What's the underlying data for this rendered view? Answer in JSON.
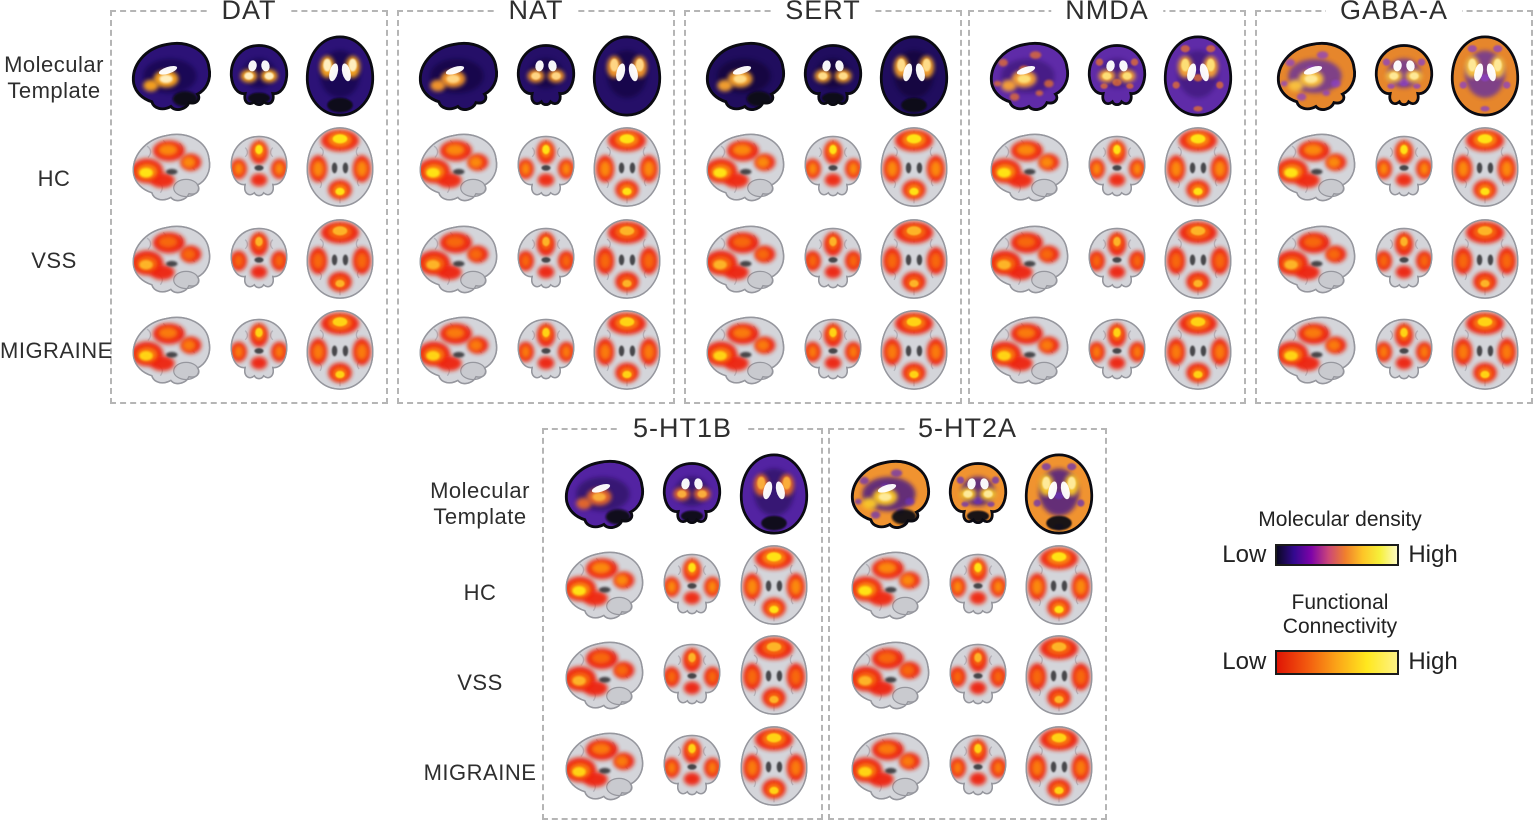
{
  "figure": {
    "row_labels": [
      "Molecular Template",
      "HC",
      "VSS",
      "MIGRAINE"
    ],
    "views": [
      "sagittal",
      "coronal",
      "axial"
    ],
    "top_panels": [
      {
        "label": "DAT",
        "scheme": "dat"
      },
      {
        "label": "NAT",
        "scheme": "nat"
      },
      {
        "label": "SERT",
        "scheme": "sert"
      },
      {
        "label": "NMDA",
        "scheme": "nmda"
      },
      {
        "label": "GABA-A",
        "scheme": "gabaa"
      }
    ],
    "bottom_panels": [
      {
        "label": "5-HT1B",
        "scheme": "ht1b"
      },
      {
        "label": "5-HT2A",
        "scheme": "ht2a"
      }
    ]
  },
  "legend": {
    "molecular": {
      "title": "Molecular density",
      "low": "Low",
      "high": "High",
      "gradient": [
        "#0b0724",
        "#33098f",
        "#7e03a8",
        "#cb4679",
        "#f0802c",
        "#fdc527",
        "#f6f03a",
        "#fdf9c0"
      ]
    },
    "functional": {
      "title": "Functional Connectivity",
      "low": "Low",
      "high": "High",
      "gradient": [
        "#e01505",
        "#f2590f",
        "#fba518",
        "#ffe81e",
        "#fdf285"
      ]
    }
  },
  "palettes": {
    "molecular_schemes": {
      "dat": {
        "base": "#2c1277",
        "shade": "#10053d",
        "shade_opacity": 0.55,
        "hot": "#ffa81f",
        "core": "#fff3c8",
        "speckle": null,
        "dark_cerebellum": true
      },
      "nat": {
        "base": "#250f68",
        "shade": "#0e0534",
        "shade_opacity": 0.55,
        "hot": "#fb9b2c",
        "core": "#ffd98a",
        "speckle": null,
        "dark_cerebellum": false
      },
      "sert": {
        "base": "#200d5e",
        "shade": "#0b0328",
        "shade_opacity": 0.5,
        "hot": "#fca62e",
        "core": "#ffe08f",
        "speckle": null,
        "dark_cerebellum": true
      },
      "nmda": {
        "base": "#5f2ba8",
        "shade": "#2a0f5e",
        "shade_opacity": 0.45,
        "hot": "#fca636",
        "core": "#fde27a",
        "speckle": "#e8722f",
        "dark_cerebellum": false
      },
      "gabaa": {
        "base": "#e6862c",
        "shade": "#5b2aa6",
        "shade_opacity": 0.75,
        "hot": "#fdc53a",
        "core": "#feea9b",
        "speckle": "#8a3fc6",
        "dark_cerebellum": false
      },
      "ht1b": {
        "base": "#5323a2",
        "shade": "#1f0847",
        "shade_opacity": 0.5,
        "hot": "#e86a2c",
        "core": "#fbb13c",
        "speckle": null,
        "dark_cerebellum": true
      },
      "ht2a": {
        "base": "#f09330",
        "shade": "#42198a",
        "shade_opacity": 0.8,
        "hot": "#fdca26",
        "core": "#feeca0",
        "speckle": "#6a30b5",
        "dark_cerebellum": true
      }
    },
    "functional_levels": {
      "HC": {
        "outer": "#f02708",
        "mid": "#fc9410",
        "core": "#ffe816"
      },
      "VSS": {
        "outer": "#ee2408",
        "mid": "#f8700e",
        "core": "#fdb92a"
      },
      "MIGRAINE": {
        "outer": "#ee2408",
        "mid": "#fb8410",
        "core": "#ffd916"
      }
    },
    "brain_gray": {
      "fill": "#d4d5da",
      "stroke": "#96979e",
      "sulci": "#b0b1b8",
      "dark": "#2f2f33"
    }
  }
}
